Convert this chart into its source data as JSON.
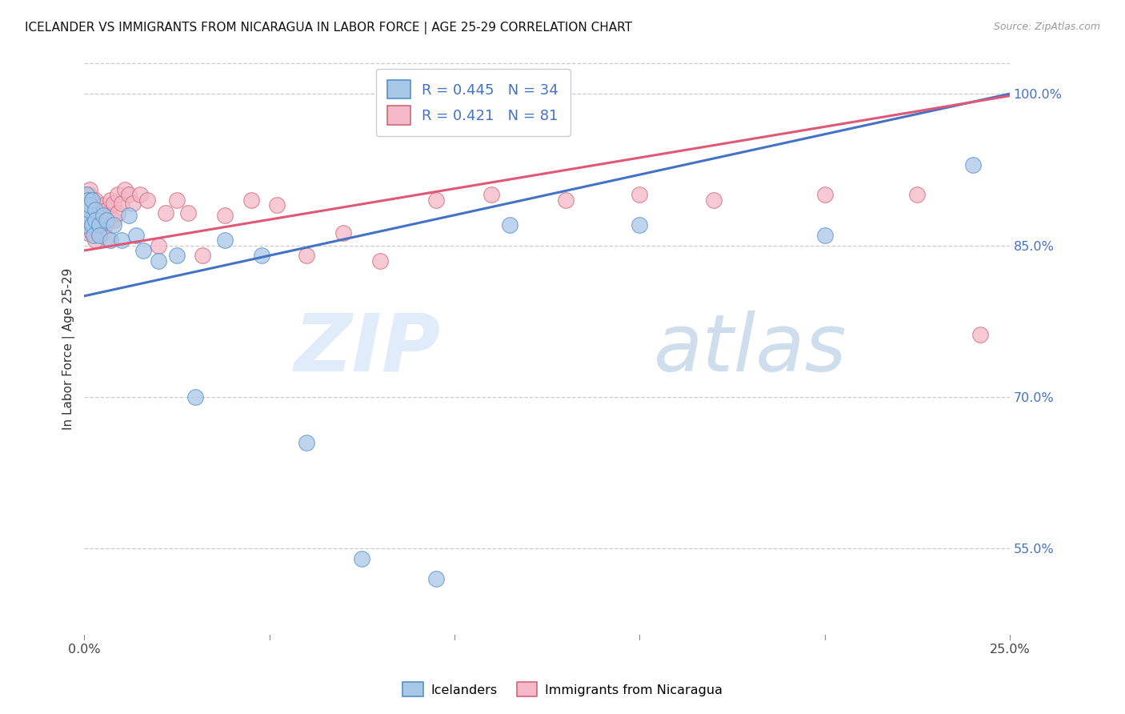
{
  "title": "ICELANDER VS IMMIGRANTS FROM NICARAGUA IN LABOR FORCE | AGE 25-29 CORRELATION CHART",
  "source": "Source: ZipAtlas.com",
  "ylabel": "In Labor Force | Age 25-29",
  "watermark_zip": "ZIP",
  "watermark_atlas": "atlas",
  "legend_r_blue": "0.445",
  "legend_n_blue": "34",
  "legend_r_pink": "0.421",
  "legend_n_pink": "81",
  "blue_color": "#a8c8e8",
  "pink_color": "#f4b8c8",
  "line_blue": "#4472c4",
  "line_pink": "#e05878",
  "blue_edge": "#5590cc",
  "pink_edge": "#d06878",
  "xlim": [
    0.0,
    0.25
  ],
  "ylim": [
    0.46,
    1.035
  ],
  "y_ticks": [
    0.55,
    0.7,
    0.85,
    1.0
  ],
  "y_tick_labels": [
    "55.0%",
    "70.0%",
    "85.0%",
    "100.0%"
  ],
  "x_ticks": [
    0.0,
    0.05,
    0.1,
    0.15,
    0.2,
    0.25
  ],
  "x_tick_labels": [
    "0.0%",
    "",
    "",
    "",
    "",
    "25.0%"
  ],
  "blue_x": [
    0.0003,
    0.0005,
    0.0007,
    0.001,
    0.001,
    0.0012,
    0.0015,
    0.002,
    0.002,
    0.0025,
    0.003,
    0.003,
    0.004,
    0.004,
    0.005,
    0.006,
    0.007,
    0.008,
    0.01,
    0.012,
    0.014,
    0.016,
    0.02,
    0.025,
    0.03,
    0.038,
    0.048,
    0.06,
    0.075,
    0.095,
    0.115,
    0.15,
    0.2,
    0.24
  ],
  "blue_y": [
    0.87,
    0.9,
    0.88,
    0.875,
    0.895,
    0.885,
    0.89,
    0.87,
    0.895,
    0.86,
    0.885,
    0.875,
    0.87,
    0.86,
    0.88,
    0.875,
    0.855,
    0.87,
    0.855,
    0.88,
    0.86,
    0.845,
    0.835,
    0.84,
    0.7,
    0.855,
    0.84,
    0.655,
    0.54,
    0.52,
    0.87,
    0.87,
    0.86,
    0.93
  ],
  "pink_x": [
    0.0002,
    0.0003,
    0.0004,
    0.0005,
    0.0005,
    0.0006,
    0.0007,
    0.0007,
    0.0008,
    0.0008,
    0.0009,
    0.0009,
    0.001,
    0.001,
    0.001,
    0.001,
    0.001,
    0.001,
    0.0012,
    0.0012,
    0.0013,
    0.0013,
    0.0015,
    0.0015,
    0.0015,
    0.0015,
    0.002,
    0.002,
    0.002,
    0.002,
    0.0022,
    0.0025,
    0.0025,
    0.003,
    0.003,
    0.003,
    0.003,
    0.0032,
    0.0035,
    0.0035,
    0.004,
    0.004,
    0.004,
    0.0045,
    0.005,
    0.005,
    0.005,
    0.006,
    0.006,
    0.006,
    0.007,
    0.007,
    0.008,
    0.008,
    0.009,
    0.009,
    0.01,
    0.011,
    0.012,
    0.013,
    0.015,
    0.017,
    0.02,
    0.022,
    0.025,
    0.028,
    0.032,
    0.038,
    0.045,
    0.052,
    0.06,
    0.07,
    0.08,
    0.095,
    0.11,
    0.13,
    0.15,
    0.17,
    0.2,
    0.225,
    0.242
  ],
  "pink_y": [
    0.895,
    0.9,
    0.895,
    0.9,
    0.89,
    0.9,
    0.895,
    0.885,
    0.9,
    0.888,
    0.9,
    0.892,
    0.9,
    0.895,
    0.888,
    0.88,
    0.87,
    0.862,
    0.895,
    0.885,
    0.9,
    0.888,
    0.905,
    0.895,
    0.885,
    0.875,
    0.895,
    0.885,
    0.875,
    0.862,
    0.88,
    0.892,
    0.878,
    0.895,
    0.885,
    0.872,
    0.855,
    0.882,
    0.875,
    0.862,
    0.888,
    0.878,
    0.862,
    0.87,
    0.89,
    0.878,
    0.862,
    0.885,
    0.872,
    0.858,
    0.895,
    0.878,
    0.892,
    0.875,
    0.9,
    0.882,
    0.892,
    0.905,
    0.9,
    0.892,
    0.9,
    0.895,
    0.85,
    0.882,
    0.895,
    0.882,
    0.84,
    0.88,
    0.895,
    0.89,
    0.84,
    0.862,
    0.835,
    0.895,
    0.9,
    0.895,
    0.9,
    0.895,
    0.9,
    0.9,
    0.762
  ]
}
